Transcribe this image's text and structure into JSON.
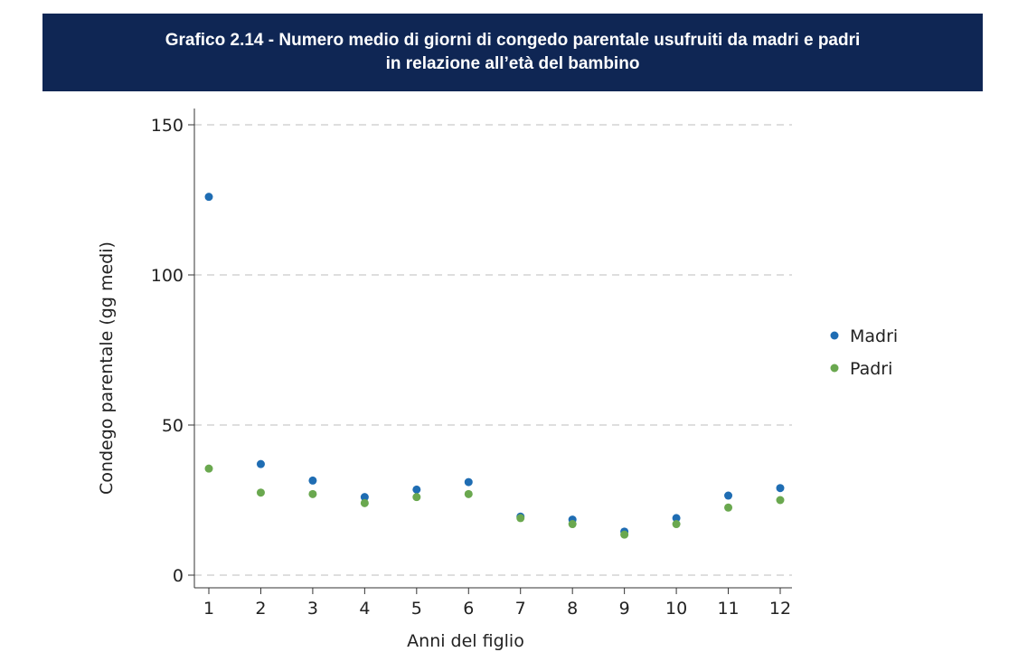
{
  "title_lines": [
    "Grafico 2.14 - Numero medio di giorni di congedo parentale usufruiti da madri e padri",
    "in relazione all’età del bambino"
  ],
  "chart_data": {
    "type": "scatter",
    "title": "Grafico 2.14 - Numero medio di giorni di congedo parentale usufruiti da madri e padri in relazione all’età del bambino",
    "xlabel": "Anni del figlio",
    "ylabel": "Condego parentale (gg medi)",
    "x": [
      1,
      2,
      3,
      4,
      5,
      6,
      7,
      8,
      9,
      10,
      11,
      12
    ],
    "x_ticks": [
      "1",
      "2",
      "3",
      "4",
      "5",
      "6",
      "7",
      "8",
      "9",
      "10",
      "11",
      "12"
    ],
    "ylim": [
      0,
      150
    ],
    "y_ticks": [
      0,
      50,
      100,
      150
    ],
    "grid": "horizontal dashed",
    "legend_position": "right",
    "series": [
      {
        "name": "Madri",
        "color": "#1f6db3",
        "values": [
          126,
          37,
          31.5,
          26,
          28.5,
          31,
          19.5,
          18.5,
          14.5,
          19,
          26.5,
          29
        ]
      },
      {
        "name": "Padri",
        "color": "#6aa84f",
        "values": [
          35.5,
          27.5,
          27,
          24,
          26,
          27,
          19,
          17,
          13.5,
          17,
          22.5,
          25
        ]
      }
    ]
  }
}
